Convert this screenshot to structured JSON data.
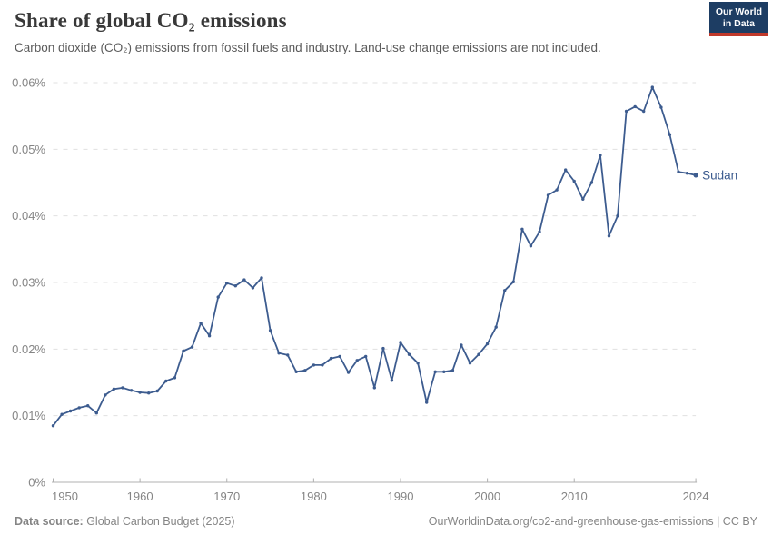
{
  "header": {
    "title": "Share of global CO₂ emissions",
    "subtitle": "Carbon dioxide (CO₂) emissions from fossil fuels and industry. Land-use change emissions are not included.",
    "logo": {
      "line1": "Our World",
      "line2": "in Data"
    }
  },
  "chart_data": {
    "type": "line",
    "title": "Share of global CO₂ emissions",
    "subtitle": "Carbon dioxide (CO₂) emissions from fossil fuels and industry. Land-use change emissions are not included.",
    "xlabel": "",
    "ylabel": "",
    "xlim": [
      1950,
      2024
    ],
    "ylim": [
      0,
      0.06
    ],
    "grid": "horizontal-dashed",
    "legend_position": "end-of-line-label",
    "unit": "%",
    "colors": {
      "line": "#3d5c8f",
      "grid": "#e0e0e0",
      "axis": "#b0b0b0",
      "tick_label": "#858585"
    },
    "y_axis": {
      "ticks": [
        {
          "value": 0,
          "label": "0%"
        },
        {
          "value": 0.01,
          "label": "0.01%"
        },
        {
          "value": 0.02,
          "label": "0.02%"
        },
        {
          "value": 0.03,
          "label": "0.03%"
        },
        {
          "value": 0.04,
          "label": "0.04%"
        },
        {
          "value": 0.05,
          "label": "0.05%"
        },
        {
          "value": 0.06,
          "label": "0.06%"
        }
      ]
    },
    "x_axis": {
      "ticks": [
        {
          "year": 1950,
          "label": "1950"
        },
        {
          "year": 1960,
          "label": "1960"
        },
        {
          "year": 1970,
          "label": "1970"
        },
        {
          "year": 1980,
          "label": "1980"
        },
        {
          "year": 1990,
          "label": "1990"
        },
        {
          "year": 2000,
          "label": "2000"
        },
        {
          "year": 2010,
          "label": "2010"
        },
        {
          "year": 2024,
          "label": "2024"
        }
      ]
    },
    "series": [
      {
        "name": "Sudan",
        "end_label": "Sudan",
        "years": [
          1950,
          1951,
          1952,
          1953,
          1954,
          1955,
          1956,
          1957,
          1958,
          1959,
          1960,
          1961,
          1962,
          1963,
          1964,
          1965,
          1966,
          1967,
          1968,
          1969,
          1970,
          1971,
          1972,
          1973,
          1974,
          1975,
          1976,
          1977,
          1978,
          1979,
          1980,
          1981,
          1982,
          1983,
          1984,
          1985,
          1986,
          1987,
          1988,
          1989,
          1990,
          1991,
          1992,
          1993,
          1994,
          1995,
          1996,
          1997,
          1998,
          1999,
          2000,
          2001,
          2002,
          2003,
          2004,
          2005,
          2006,
          2007,
          2008,
          2009,
          2010,
          2011,
          2012,
          2013,
          2014,
          2015,
          2016,
          2017,
          2018,
          2019,
          2020,
          2021,
          2022,
          2023,
          2024
        ],
        "values": [
          0.0085,
          0.0102,
          0.0107,
          0.0112,
          0.0115,
          0.0104,
          0.0131,
          0.014,
          0.0142,
          0.0138,
          0.0135,
          0.0134,
          0.0137,
          0.0152,
          0.0157,
          0.0197,
          0.0203,
          0.0239,
          0.022,
          0.0278,
          0.0299,
          0.0295,
          0.0304,
          0.0292,
          0.0307,
          0.0228,
          0.0194,
          0.0191,
          0.0166,
          0.0168,
          0.0176,
          0.0176,
          0.0186,
          0.0189,
          0.0165,
          0.0183,
          0.0189,
          0.0142,
          0.0201,
          0.0153,
          0.021,
          0.0192,
          0.0179,
          0.012,
          0.0166,
          0.0166,
          0.0168,
          0.0206,
          0.0179,
          0.0192,
          0.0208,
          0.0233,
          0.0288,
          0.0301,
          0.038,
          0.0355,
          0.0376,
          0.0431,
          0.0439,
          0.0469,
          0.0452,
          0.0425,
          0.045,
          0.0491,
          0.037,
          0.04,
          0.0557,
          0.0564,
          0.0557,
          0.0593,
          0.0563,
          0.0522,
          0.0466,
          0.0464,
          0.0461
        ]
      }
    ]
  },
  "footer": {
    "datasource_label": "Data source:",
    "datasource_value": " Global Carbon Budget (2025)",
    "link_text": "OurWorldinData.org/co2-and-greenhouse-gas-emissions | CC BY"
  }
}
